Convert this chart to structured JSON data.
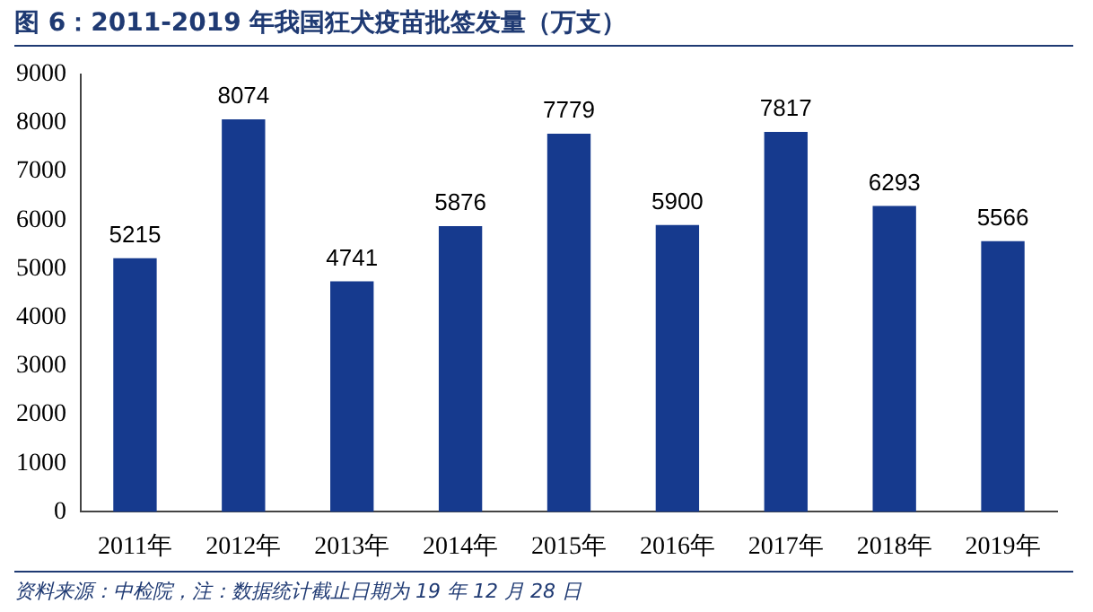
{
  "chart_data": {
    "type": "bar",
    "title": "图 6：2011-2019 年我国狂犬疫苗批签发量（万支）",
    "categories": [
      "2011年",
      "2012年",
      "2013年",
      "2014年",
      "2015年",
      "2016年",
      "2017年",
      "2018年",
      "2019年"
    ],
    "values": [
      5215,
      8074,
      4741,
      5876,
      7779,
      5900,
      7817,
      6293,
      5566
    ],
    "color": "#163a8e",
    "ylim": [
      0,
      9000
    ],
    "yticks": [
      0,
      1000,
      2000,
      3000,
      4000,
      5000,
      6000,
      7000,
      8000,
      9000
    ],
    "grid": false,
    "data_labels": true,
    "annotations": [
      "资料来源：中检院，注：数据统计截止日期为 19 年 12 月 28 日"
    ]
  }
}
